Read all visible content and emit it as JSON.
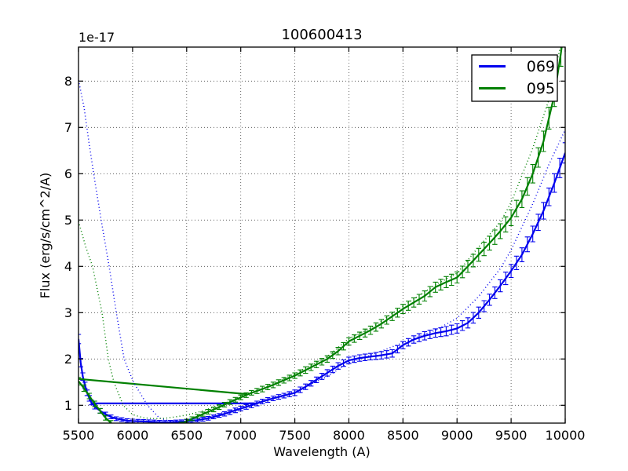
{
  "title": "100600413",
  "axes": {
    "offset_text": "1e-17",
    "xlabel": "Wavelength (A)",
    "ylabel": "Flux (erg/s/cm^2/A)",
    "x_ticks": [
      5500,
      6000,
      6500,
      7000,
      7500,
      8000,
      8500,
      9000,
      9500,
      10000
    ],
    "y_ticks": [
      1,
      2,
      3,
      4,
      5,
      6,
      7,
      8
    ]
  },
  "legend": {
    "position": "upper right",
    "entries": [
      {
        "label": "069",
        "color": "#0000ee"
      },
      {
        "label": "095",
        "color": "#008000"
      }
    ]
  },
  "colors": {
    "blue_series": "#0000ee",
    "green_series": "#008000",
    "background": "#ffffff",
    "frame": "#000000"
  },
  "chart_data": {
    "type": "line",
    "title": "100600413",
    "xlabel": "Wavelength (A)",
    "ylabel": "Flux (erg/s/cm^2/A)",
    "y_offset_factor": "1e-17",
    "xlim": [
      5500,
      10000
    ],
    "ylim": [
      0.62,
      8.73
    ],
    "grid": true,
    "legend_position": "upper right",
    "series": [
      {
        "name": "069",
        "color": "#0000ee",
        "style": "solid-errorbars",
        "points": [
          [
            5500,
            2.43,
            0.1
          ],
          [
            5520,
            1.92,
            0.09
          ],
          [
            5540,
            1.62,
            0.08
          ],
          [
            5560,
            1.43,
            0.07
          ],
          [
            5580,
            1.27,
            0.06
          ],
          [
            5600,
            1.15,
            0.06
          ],
          [
            5620,
            1.06,
            0.05
          ],
          [
            5650,
            0.97,
            0.05
          ],
          [
            5700,
            0.88,
            0.05
          ],
          [
            5750,
            0.81,
            0.04
          ],
          [
            5800,
            0.75,
            0.04
          ],
          [
            5850,
            0.71,
            0.04
          ],
          [
            5900,
            0.69,
            0.04
          ],
          [
            5950,
            0.67,
            0.04
          ],
          [
            6000,
            0.66,
            0.04
          ],
          [
            6100,
            0.65,
            0.04
          ],
          [
            6200,
            0.64,
            0.04
          ],
          [
            6300,
            0.63,
            0.04
          ],
          [
            6400,
            0.64,
            0.04
          ],
          [
            6500,
            0.65,
            0.04
          ],
          [
            6600,
            0.68,
            0.04
          ],
          [
            6700,
            0.72,
            0.04
          ],
          [
            6800,
            0.78,
            0.04
          ],
          [
            6900,
            0.85,
            0.05
          ],
          [
            7000,
            0.93,
            0.05
          ],
          [
            7100,
            1.0,
            0.05
          ],
          [
            7200,
            1.08,
            0.05
          ],
          [
            7300,
            1.15,
            0.05
          ],
          [
            7400,
            1.21,
            0.05
          ],
          [
            7500,
            1.27,
            0.06
          ],
          [
            7600,
            1.4,
            0.06
          ],
          [
            7700,
            1.55,
            0.06
          ],
          [
            7800,
            1.7,
            0.07
          ],
          [
            7900,
            1.85,
            0.07
          ],
          [
            8000,
            1.97,
            0.07
          ],
          [
            8100,
            2.02,
            0.07
          ],
          [
            8200,
            2.05,
            0.07
          ],
          [
            8300,
            2.08,
            0.08
          ],
          [
            8400,
            2.12,
            0.08
          ],
          [
            8500,
            2.3,
            0.08
          ],
          [
            8600,
            2.42,
            0.08
          ],
          [
            8700,
            2.5,
            0.09
          ],
          [
            8800,
            2.56,
            0.09
          ],
          [
            8900,
            2.6,
            0.1
          ],
          [
            9000,
            2.66,
            0.1
          ],
          [
            9100,
            2.78,
            0.11
          ],
          [
            9200,
            3.0,
            0.12
          ],
          [
            9300,
            3.28,
            0.12
          ],
          [
            9400,
            3.58,
            0.13
          ],
          [
            9500,
            3.9,
            0.14
          ],
          [
            9600,
            4.25,
            0.15
          ],
          [
            9700,
            4.7,
            0.17
          ],
          [
            9800,
            5.2,
            0.18
          ],
          [
            9900,
            5.8,
            0.2
          ],
          [
            10000,
            6.45,
            0.22
          ]
        ]
      },
      {
        "name": "069-interpolation-line",
        "color": "#0000ee",
        "style": "solid",
        "points": [
          [
            5612,
            1.04
          ],
          [
            7150,
            1.04
          ]
        ]
      },
      {
        "name": "095",
        "color": "#008000",
        "style": "solid-errorbars",
        "points": [
          [
            5500,
            1.52,
            0.08
          ],
          [
            5550,
            1.37,
            0.07
          ],
          [
            5600,
            1.2,
            0.06
          ],
          [
            5650,
            1.03,
            0.06
          ],
          [
            5700,
            0.88,
            0.05
          ],
          [
            5750,
            0.73,
            0.05
          ],
          [
            5800,
            0.62,
            0.05
          ],
          [
            5850,
            0.52,
            0.05
          ],
          [
            5900,
            0.45,
            0.04
          ],
          [
            6000,
            0.38,
            0.04
          ],
          [
            6100,
            0.35,
            0.04
          ],
          [
            6200,
            0.37,
            0.04
          ],
          [
            6300,
            0.44,
            0.04
          ],
          [
            6400,
            0.53,
            0.04
          ],
          [
            6500,
            0.66,
            0.04
          ],
          [
            6600,
            0.76,
            0.04
          ],
          [
            6700,
            0.86,
            0.05
          ],
          [
            6800,
            0.96,
            0.05
          ],
          [
            6900,
            1.07,
            0.05
          ],
          [
            7000,
            1.17,
            0.05
          ],
          [
            7100,
            1.27,
            0.05
          ],
          [
            7200,
            1.35,
            0.06
          ],
          [
            7300,
            1.44,
            0.06
          ],
          [
            7400,
            1.54,
            0.06
          ],
          [
            7500,
            1.64,
            0.06
          ],
          [
            7600,
            1.76,
            0.07
          ],
          [
            7700,
            1.88,
            0.07
          ],
          [
            7800,
            2.0,
            0.07
          ],
          [
            7900,
            2.17,
            0.08
          ],
          [
            8000,
            2.38,
            0.08
          ],
          [
            8100,
            2.5,
            0.08
          ],
          [
            8200,
            2.62,
            0.09
          ],
          [
            8300,
            2.76,
            0.09
          ],
          [
            8400,
            2.92,
            0.09
          ],
          [
            8500,
            3.08,
            0.1
          ],
          [
            8600,
            3.22,
            0.1
          ],
          [
            8700,
            3.36,
            0.11
          ],
          [
            8800,
            3.55,
            0.11
          ],
          [
            8900,
            3.66,
            0.12
          ],
          [
            9000,
            3.76,
            0.12
          ],
          [
            9100,
            4.0,
            0.13
          ],
          [
            9200,
            4.25,
            0.14
          ],
          [
            9300,
            4.5,
            0.15
          ],
          [
            9400,
            4.76,
            0.16
          ],
          [
            9500,
            5.05,
            0.17
          ],
          [
            9600,
            5.45,
            0.18
          ],
          [
            9700,
            6.0,
            0.2
          ],
          [
            9800,
            6.7,
            0.22
          ],
          [
            9900,
            7.7,
            0.25
          ],
          [
            9960,
            8.6,
            0.28
          ],
          [
            10000,
            9.3,
            0.3
          ]
        ]
      },
      {
        "name": "095-interpolation-line",
        "color": "#008000",
        "style": "solid",
        "points": [
          [
            5500,
            1.57
          ],
          [
            7060,
            1.24
          ]
        ]
      },
      {
        "name": "069-template-dotted",
        "color": "#0000ee",
        "style": "dotted",
        "points": [
          [
            5500,
            8.02
          ],
          [
            5550,
            7.45
          ],
          [
            5600,
            6.62
          ],
          [
            5650,
            5.85
          ],
          [
            5710,
            5.0
          ],
          [
            5783,
            4.0
          ],
          [
            5850,
            3.0
          ],
          [
            5922,
            2.0
          ],
          [
            6008,
            1.5
          ],
          [
            6138,
            1.0
          ],
          [
            6250,
            0.72
          ],
          [
            6350,
            0.66
          ],
          [
            6450,
            0.66
          ],
          [
            6550,
            0.7
          ],
          [
            6700,
            0.76
          ],
          [
            6850,
            0.85
          ],
          [
            7000,
            0.96
          ],
          [
            7200,
            1.1
          ],
          [
            7500,
            1.3
          ],
          [
            7800,
            1.62
          ],
          [
            8000,
            1.92
          ],
          [
            8200,
            2.08
          ],
          [
            8500,
            2.35
          ],
          [
            8800,
            2.62
          ],
          [
            9000,
            2.88
          ],
          [
            9200,
            3.35
          ],
          [
            9400,
            3.95
          ],
          [
            9500,
            4.35
          ],
          [
            9700,
            5.35
          ],
          [
            9850,
            6.2
          ],
          [
            10000,
            6.95
          ]
        ]
      },
      {
        "name": "095-template-dotted",
        "color": "#008000",
        "style": "dotted",
        "points": [
          [
            5500,
            4.97
          ],
          [
            5570,
            4.4
          ],
          [
            5630,
            4.0
          ],
          [
            5718,
            3.0
          ],
          [
            5776,
            2.0
          ],
          [
            5827,
            1.5
          ],
          [
            5913,
            1.0
          ],
          [
            6000,
            0.8
          ],
          [
            6100,
            0.73
          ],
          [
            6200,
            0.71
          ],
          [
            6300,
            0.72
          ],
          [
            6400,
            0.75
          ],
          [
            6500,
            0.79
          ],
          [
            6650,
            0.88
          ],
          [
            6800,
            1.0
          ],
          [
            7000,
            1.18
          ],
          [
            7200,
            1.36
          ],
          [
            7500,
            1.68
          ],
          [
            7800,
            2.05
          ],
          [
            8000,
            2.44
          ],
          [
            8200,
            2.66
          ],
          [
            8500,
            3.14
          ],
          [
            8800,
            3.6
          ],
          [
            9000,
            3.85
          ],
          [
            9200,
            4.42
          ],
          [
            9400,
            4.95
          ],
          [
            9500,
            5.38
          ],
          [
            9700,
            6.55
          ],
          [
            9850,
            7.6
          ],
          [
            9960,
            8.8
          ]
        ]
      }
    ]
  }
}
